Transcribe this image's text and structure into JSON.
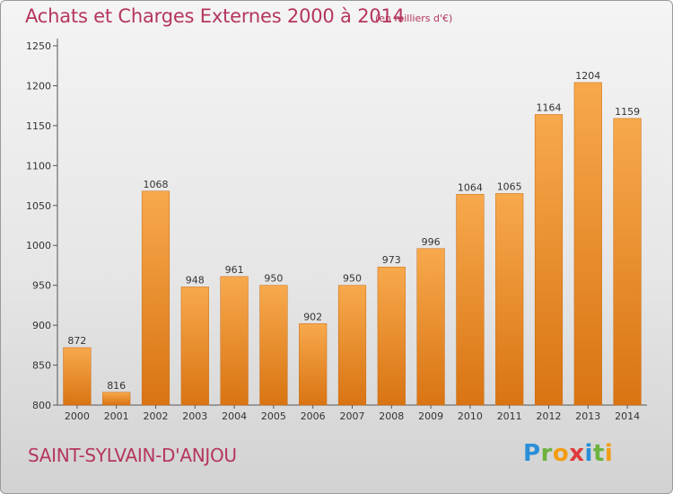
{
  "chart_data": {
    "type": "bar",
    "title": "Achats et Charges Externes 2000 à 2014",
    "subtitle": "(en milliers d'€)",
    "categories": [
      "2000",
      "2001",
      "2002",
      "2003",
      "2004",
      "2005",
      "2006",
      "2007",
      "2008",
      "2009",
      "2010",
      "2011",
      "2012",
      "2013",
      "2014"
    ],
    "values": [
      872,
      816,
      1068,
      948,
      961,
      950,
      902,
      950,
      973,
      996,
      1064,
      1065,
      1164,
      1204,
      1159
    ],
    "ylim": [
      800,
      1250
    ],
    "yticks": [
      800,
      850,
      900,
      950,
      1000,
      1050,
      1100,
      1150,
      1200,
      1250
    ],
    "grid": false,
    "bar_color": "#f0922e"
  },
  "footer": {
    "commune": "SAINT-SYLVAIN-D'ANJOU",
    "brand_letters": [
      {
        "ch": "P",
        "color": "#2a8fd8"
      },
      {
        "ch": "r",
        "color": "#6cb33f"
      },
      {
        "ch": "o",
        "color": "#f39c12"
      },
      {
        "ch": "x",
        "color": "#e03a3a"
      },
      {
        "ch": "i",
        "color": "#2a8fd8"
      },
      {
        "ch": "t",
        "color": "#6cb33f"
      },
      {
        "ch": "i",
        "color": "#f39c12"
      }
    ]
  },
  "colors": {
    "title": "#b5365c"
  }
}
